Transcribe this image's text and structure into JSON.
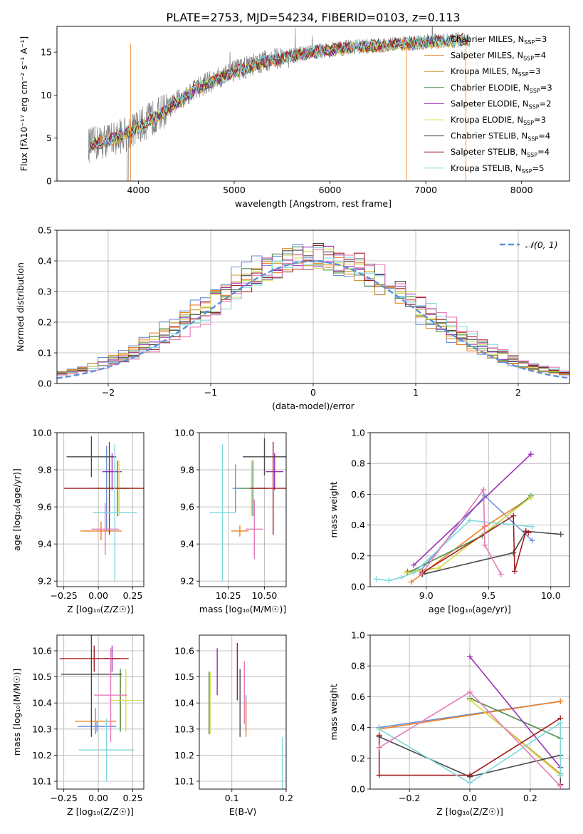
{
  "figure_title": "PLATE=2753, MJD=54234, FIBERID=0103, z=0.113",
  "legend_colors": [
    "#6b8fd6",
    "#ef8125",
    "#c99a30",
    "#4c8c4a",
    "#9b30b8",
    "#d8e05a",
    "#4a4a4a",
    "#a31e1e",
    "#7fd8dc"
  ],
  "spectrum_color": "#808080",
  "chart_data": [
    {
      "id": "spectrum",
      "type": "line",
      "title": "PLATE=2753, MJD=54234, FIBERID=0103, z=0.113",
      "xlabel": "wavelength [Angstrom, rest frame]",
      "ylabel": "Flux [fλ10⁻¹⁷ erg cm⁻² s⁻¹ A⁻¹]",
      "xlim": [
        3150,
        8500
      ],
      "ylim": [
        0,
        18
      ],
      "xticks": [
        4000,
        5000,
        6000,
        7000,
        8000
      ],
      "yticks": [
        0,
        5,
        10,
        15
      ],
      "grid": false,
      "legend_position": "upper right",
      "continuum_x": [
        3500,
        3800,
        4000,
        4300,
        4600,
        5000,
        5400,
        5800,
        6200,
        6600,
        7000,
        7400,
        8200
      ],
      "continuum_y": [
        4.2,
        5.2,
        6.3,
        8.4,
        10.8,
        12.8,
        14.2,
        15.0,
        15.6,
        15.9,
        16.2,
        16.5,
        16.8
      ],
      "legend": [
        "Chabrier MILES, N_SSP=3",
        "Salpeter MILES, N_SSP=4",
        "Kroupa MILES, N_SSP=3",
        "Chabrier ELODIE, N_SSP=3",
        "Salpeter ELODIE, N_SSP=2",
        "Kroupa ELODIE, N_SSP=3",
        "Chabrier STELIB, N_SSP=4",
        "Salpeter STELIB, N_SSP=4",
        "Kroupa STELIB, N_SSP=5"
      ]
    },
    {
      "id": "residuals",
      "type": "step-histogram",
      "xlabel": "(data-model)/error",
      "ylabel": "Normed distribution",
      "xlim": [
        -2.5,
        2.5
      ],
      "ylim": [
        0,
        0.5
      ],
      "xticks": [
        -2,
        -1,
        0,
        1,
        2
      ],
      "yticks": [
        0,
        0.1,
        0.2,
        0.3,
        0.4,
        0.5
      ],
      "bin_width": 0.1,
      "grid": true,
      "legend_position": "upper right",
      "reference_label": "𝒩(0, 1)",
      "reference_color": "#5b8fd6"
    },
    {
      "id": "age-vs-z",
      "type": "errorbar",
      "xlabel": "Z [log₁₀(Z/Z☉)]",
      "ylabel": "age  [log₁₀(age/yr)]",
      "xlim": [
        -0.3,
        0.33
      ],
      "ylim": [
        9.17,
        10.0
      ],
      "xticks": [
        -0.25,
        0.0,
        0.25
      ],
      "yticks": [
        9.2,
        9.4,
        9.6,
        9.8,
        10.0
      ],
      "grid": true,
      "points": [
        {
          "x": 0.06,
          "y": 9.7,
          "xerr": 0.09,
          "yerr": 0.23,
          "color": "#6b8fd6"
        },
        {
          "x": 0.02,
          "y": 9.47,
          "xerr": 0.15,
          "yerr": 0.05,
          "color": "#ef8125"
        },
        {
          "x": 0.15,
          "y": 9.7,
          "xerr": 0.05,
          "yerr": 0.13,
          "color": "#c99a30"
        },
        {
          "x": 0.14,
          "y": 9.7,
          "xerr": 0.1,
          "yerr": 0.15,
          "color": "#4c8c4a"
        },
        {
          "x": 0.1,
          "y": 9.79,
          "xerr": 0.07,
          "yerr": 0.1,
          "color": "#9b30b8"
        },
        {
          "x": 0.15,
          "y": 9.7,
          "xerr": 0.15,
          "yerr": 0.15,
          "color": "#d8e05a"
        },
        {
          "x": -0.05,
          "y": 9.87,
          "xerr": 0.18,
          "yerr": 0.11,
          "color": "#4a4a4a"
        },
        {
          "x": 0.08,
          "y": 9.7,
          "xerr": 0.33,
          "yerr": 0.25,
          "color": "#a31e1e"
        },
        {
          "x": 0.12,
          "y": 9.57,
          "xerr": 0.16,
          "yerr": 0.37,
          "color": "#7fd8dc"
        },
        {
          "x": 0.05,
          "y": 9.48,
          "xerr": 0.1,
          "yerr": 0.14,
          "color": "#e57ab8"
        }
      ]
    },
    {
      "id": "age-vs-mass",
      "type": "errorbar",
      "xlabel": "mass [log₁₀(M/M☉)]",
      "ylabel": "",
      "xlim": [
        10.05,
        10.65
      ],
      "ylim": [
        9.17,
        10.0
      ],
      "xticks": [
        10.25,
        10.5
      ],
      "yticks": [
        9.2,
        9.4,
        9.6,
        9.8,
        10.0
      ],
      "grid": true,
      "points": [
        {
          "x": 10.3,
          "y": 9.7,
          "xerr": 0.02,
          "yerr": 0.13,
          "color": "#6b8fd6"
        },
        {
          "x": 10.33,
          "y": 9.47,
          "xerr": 0.06,
          "yerr": 0.03,
          "color": "#ef8125"
        },
        {
          "x": 10.41,
          "y": 9.7,
          "xerr": 0.01,
          "yerr": 0.12,
          "color": "#c99a30"
        },
        {
          "x": 10.42,
          "y": 9.7,
          "xerr": 0.1,
          "yerr": 0.15,
          "color": "#4c8c4a"
        },
        {
          "x": 10.57,
          "y": 9.79,
          "xerr": 0.06,
          "yerr": 0.1,
          "color": "#9b30b8"
        },
        {
          "x": 10.41,
          "y": 9.7,
          "xerr": 0.01,
          "yerr": 0.15,
          "color": "#d8e05a"
        },
        {
          "x": 10.5,
          "y": 9.87,
          "xerr": 0.15,
          "yerr": 0.1,
          "color": "#4a4a4a"
        },
        {
          "x": 10.56,
          "y": 9.7,
          "xerr": 0.16,
          "yerr": 0.25,
          "color": "#a31e1e"
        },
        {
          "x": 10.21,
          "y": 9.57,
          "xerr": 0.09,
          "yerr": 0.37,
          "color": "#7fd8dc"
        },
        {
          "x": 10.43,
          "y": 9.48,
          "xerr": 0.06,
          "yerr": 0.16,
          "color": "#e57ab8"
        }
      ]
    },
    {
      "id": "mass-weight-vs-age",
      "type": "line",
      "xlabel": "age  [log₁₀(age/yr)]",
      "ylabel": "mass weight",
      "xlim": [
        8.55,
        10.15
      ],
      "ylim": [
        0,
        1.0
      ],
      "xticks": [
        9.0,
        9.5,
        10.0
      ],
      "yticks": [
        0.0,
        0.2,
        0.4,
        0.6,
        0.8,
        1.0
      ],
      "grid": true,
      "series": [
        {
          "color": "#6b8fd6",
          "x": [
            8.95,
            9.47,
            9.85
          ],
          "y": [
            0.1,
            0.59,
            0.3
          ]
        },
        {
          "color": "#ef8125",
          "x": [
            8.88,
            9.47,
            9.84
          ],
          "y": [
            0.03,
            0.39,
            0.58
          ]
        },
        {
          "color": "#c99a30",
          "x": [
            8.85,
            9.1,
            9.84
          ],
          "y": [
            0.1,
            0.12,
            0.58
          ]
        },
        {
          "color": "#4c8c4a",
          "x": [
            8.85,
            9.45,
            9.84
          ],
          "y": [
            0.09,
            0.33,
            0.59
          ]
        },
        {
          "color": "#9b30b8",
          "x": [
            8.9,
            9.84
          ],
          "y": [
            0.14,
            0.86
          ]
        },
        {
          "color": "#d8e05a",
          "x": [
            8.84,
            9.1,
            9.84
          ],
          "y": [
            0.09,
            0.12,
            0.58
          ]
        },
        {
          "color": "#4a4a4a",
          "x": [
            8.97,
            9.7,
            9.8,
            10.08
          ],
          "y": [
            0.08,
            0.22,
            0.36,
            0.34
          ]
        },
        {
          "color": "#a31e1e",
          "x": [
            8.97,
            9.7,
            9.71,
            9.8,
            9.82
          ],
          "y": [
            0.09,
            0.46,
            0.1,
            0.36,
            0.35
          ]
        },
        {
          "color": "#7fd8dc",
          "x": [
            8.6,
            8.7,
            8.8,
            8.9,
            9.35,
            9.85
          ],
          "y": [
            0.05,
            0.04,
            0.06,
            0.09,
            0.43,
            0.39
          ]
        },
        {
          "color": "#e57ab8",
          "x": [
            8.96,
            9.46,
            9.47,
            9.6
          ],
          "y": [
            0.08,
            0.63,
            0.27,
            0.08
          ]
        }
      ]
    },
    {
      "id": "mass-vs-z",
      "type": "errorbar",
      "xlabel": "Z [log₁₀(Z/Z☉)]",
      "ylabel": "mass [log₁₀(M/M☉)]",
      "xlim": [
        -0.3,
        0.33
      ],
      "ylim": [
        10.07,
        10.66
      ],
      "xticks": [
        -0.25,
        0.0,
        0.25
      ],
      "yticks": [
        10.1,
        10.2,
        10.3,
        10.4,
        10.5,
        10.6
      ],
      "grid": true,
      "points": [
        {
          "x": -0.01,
          "y": 10.31,
          "xerr": 0.14,
          "yerr": 0.02,
          "color": "#6b8fd6"
        },
        {
          "x": -0.02,
          "y": 10.33,
          "xerr": 0.15,
          "yerr": 0.05,
          "color": "#ef8125"
        },
        {
          "x": 0.16,
          "y": 10.41,
          "xerr": 0.01,
          "yerr": 0.1,
          "color": "#c99a30"
        },
        {
          "x": 0.16,
          "y": 10.41,
          "xerr": 0.01,
          "yerr": 0.12,
          "color": "#4c8c4a"
        },
        {
          "x": 0.1,
          "y": 10.57,
          "xerr": 0.06,
          "yerr": 0.05,
          "color": "#9b30b8"
        },
        {
          "x": 0.2,
          "y": 10.41,
          "xerr": 0.12,
          "yerr": 0.12,
          "color": "#d8e05a"
        },
        {
          "x": -0.05,
          "y": 10.51,
          "xerr": 0.22,
          "yerr": 0.24,
          "color": "#4a4a4a"
        },
        {
          "x": -0.03,
          "y": 10.57,
          "xerr": 0.25,
          "yerr": 0.05,
          "color": "#a31e1e"
        },
        {
          "x": 0.06,
          "y": 10.22,
          "xerr": 0.2,
          "yerr": 0.12,
          "color": "#7fd8dc"
        },
        {
          "x": 0.09,
          "y": 10.43,
          "xerr": 0.12,
          "yerr": 0.18,
          "color": "#e57ab8"
        }
      ]
    },
    {
      "id": "mass-vs-ebv",
      "type": "errorbar",
      "xlabel": "E(B-V)",
      "ylabel": "",
      "xlim": [
        0.04,
        0.2
      ],
      "ylim": [
        10.07,
        10.66
      ],
      "xticks": [
        0.1,
        0.2
      ],
      "yticks": [
        10.1,
        10.2,
        10.3,
        10.4,
        10.5,
        10.6
      ],
      "grid": true,
      "points": [
        {
          "x": 0.126,
          "y": 10.36,
          "xerr": 0,
          "yerr": 0.07,
          "color": "#6b8fd6"
        },
        {
          "x": 0.126,
          "y": 10.34,
          "xerr": 0,
          "yerr": 0.07,
          "color": "#ef8125"
        },
        {
          "x": 0.058,
          "y": 10.4,
          "xerr": 0,
          "yerr": 0.12,
          "color": "#4c8c4a"
        },
        {
          "x": 0.073,
          "y": 10.52,
          "xerr": 0,
          "yerr": 0.09,
          "color": "#9b30b8"
        },
        {
          "x": 0.06,
          "y": 10.4,
          "xerr": 0,
          "yerr": 0.12,
          "color": "#d8e05a"
        },
        {
          "x": 0.115,
          "y": 10.4,
          "xerr": 0,
          "yerr": 0.13,
          "color": "#4a4a4a"
        },
        {
          "x": 0.11,
          "y": 10.52,
          "xerr": 0,
          "yerr": 0.11,
          "color": "#a31e1e"
        },
        {
          "x": 0.193,
          "y": 10.17,
          "xerr": 0,
          "yerr": 0.1,
          "color": "#7fd8dc"
        },
        {
          "x": 0.123,
          "y": 10.44,
          "xerr": 0,
          "yerr": 0.12,
          "color": "#e57ab8"
        }
      ]
    },
    {
      "id": "mass-weight-vs-z",
      "type": "line",
      "xlabel": "Z [log₁₀(Z/Z☉)]",
      "ylabel": "mass weight",
      "xlim": [
        -0.33,
        0.33
      ],
      "ylim": [
        0,
        1.0
      ],
      "xticks": [
        -0.2,
        0.0,
        0.2
      ],
      "yticks": [
        0.0,
        0.2,
        0.4,
        0.6,
        0.8,
        1.0
      ],
      "grid": true,
      "series": [
        {
          "color": "#6b8fd6",
          "x": [
            -0.3,
            0.3
          ],
          "y": [
            0.4,
            0.57
          ]
        },
        {
          "color": "#ef8125",
          "x": [
            -0.3,
            0.3
          ],
          "y": [
            0.39,
            0.57
          ]
        },
        {
          "color": "#c99a30",
          "x": [
            0.0,
            0.3
          ],
          "y": [
            0.58,
            0.1
          ]
        },
        {
          "color": "#4c8c4a",
          "x": [
            0.0,
            0.3
          ],
          "y": [
            0.59,
            0.33
          ]
        },
        {
          "color": "#9b30b8",
          "x": [
            0.0,
            0.3
          ],
          "y": [
            0.86,
            0.14
          ]
        },
        {
          "color": "#d8e05a",
          "x": [
            0.0,
            0.3
          ],
          "y": [
            0.58,
            0.09
          ]
        },
        {
          "color": "#4a4a4a",
          "x": [
            -0.3,
            0.0,
            0.3,
            0.3
          ],
          "y": [
            0.34,
            0.08,
            0.22,
            0.03
          ]
        },
        {
          "color": "#a31e1e",
          "x": [
            -0.3,
            -0.3,
            0.0,
            0.3
          ],
          "y": [
            0.35,
            0.09,
            0.09,
            0.46
          ]
        },
        {
          "color": "#7fd8dc",
          "x": [
            -0.3,
            0.0,
            0.3,
            0.3
          ],
          "y": [
            0.39,
            0.04,
            0.43,
            0.09
          ]
        },
        {
          "color": "#e57ab8",
          "x": [
            -0.3,
            0.0,
            0.3
          ],
          "y": [
            0.27,
            0.63,
            0.02
          ]
        }
      ]
    }
  ]
}
